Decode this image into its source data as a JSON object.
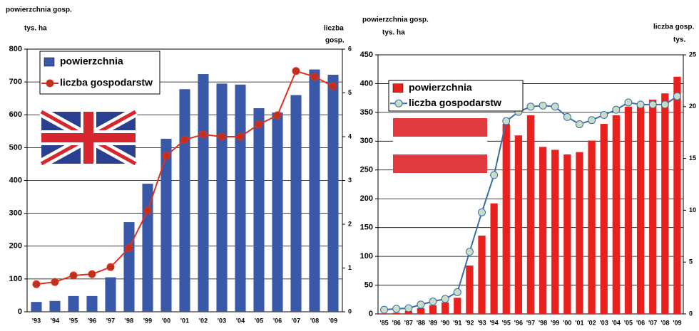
{
  "chart_data": [
    {
      "type": "bar_line",
      "ylabel": [
        "powierzchnia gosp.",
        "tys. ha"
      ],
      "y2label": [
        "liczba",
        "gosp."
      ],
      "categories": [
        "'93",
        "'94",
        "'95",
        "'96",
        "'97",
        "'98",
        "'99",
        "'00",
        "'01",
        "'02",
        "'03",
        "'04",
        "'05",
        "'06",
        "'07",
        "'08",
        "'09"
      ],
      "series": [
        {
          "name": "powierzchnia",
          "kind": "bar",
          "color": "#3a58a8",
          "values": [
            30,
            33,
            48,
            48,
            105,
            273,
            390,
            527,
            678,
            724,
            695,
            692,
            620,
            607,
            660,
            738,
            722
          ]
        },
        {
          "name": "liczba gospodarstw",
          "kind": "line",
          "axis": "y2",
          "color": "#e0301e",
          "marker_color": "#c0301e",
          "values": [
            0.63,
            0.68,
            0.83,
            0.86,
            1.02,
            1.46,
            2.31,
            3.56,
            3.93,
            4.05,
            4.0,
            4.0,
            4.28,
            4.49,
            5.5,
            5.37,
            5.15
          ]
        }
      ],
      "ylim": [
        0,
        800
      ],
      "yticks": [
        0,
        100,
        200,
        300,
        400,
        500,
        600,
        700,
        800
      ],
      "y2lim": [
        0,
        6
      ],
      "y2ticks": [
        0,
        1,
        2,
        3,
        4,
        5,
        6
      ],
      "grid": true,
      "legend": "top-left"
    },
    {
      "type": "bar_line",
      "ylabel": [
        "powierzchnia gosp.",
        "tys. ha"
      ],
      "y2label": [
        "liczba gosp.",
        "tys."
      ],
      "categories": [
        "'85",
        "'86",
        "'87",
        "'88",
        "'89",
        "'90",
        "'91",
        "'92",
        "'93",
        "'94",
        "'95",
        "'96",
        "'97",
        "'98",
        "'99",
        "'00",
        "'01",
        "'02",
        "'03",
        "'04",
        "'05",
        "'06",
        "'07",
        "'08",
        "'09"
      ],
      "series": [
        {
          "name": "powierzchnia",
          "kind": "bar",
          "color": "#e8201e",
          "values": [
            1,
            2,
            5,
            10,
            15,
            20,
            28,
            84,
            136,
            192,
            330,
            310,
            345,
            290,
            285,
            277,
            281,
            301,
            330,
            345,
            360,
            362,
            372,
            383,
            412
          ]
        },
        {
          "name": "liczba gospodarstw",
          "kind": "line",
          "axis": "y2",
          "color": "#3a6ea5",
          "marker_color": "#c8dcc8",
          "values": [
            0.4,
            0.5,
            0.55,
            0.9,
            1.2,
            1.45,
            2.1,
            6,
            9.8,
            13.4,
            18.6,
            19.5,
            20,
            20.1,
            20,
            19,
            18.3,
            18.7,
            19.2,
            19.7,
            20.4,
            20.2,
            20.2,
            20.2,
            21
          ]
        }
      ],
      "ylim": [
        0,
        450
      ],
      "yticks": [
        0,
        50,
        100,
        150,
        200,
        250,
        300,
        350,
        400,
        450
      ],
      "y2lim": [
        0,
        25
      ],
      "y2ticks": [
        0,
        5,
        10,
        15,
        20,
        25
      ],
      "grid": true,
      "legend": "top-left"
    }
  ]
}
